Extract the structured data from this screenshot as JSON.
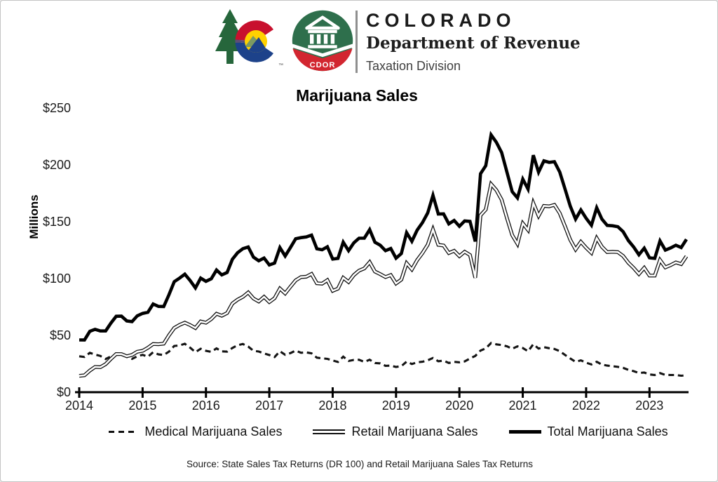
{
  "header": {
    "org_name": "COLORADO",
    "department": "Department of Revenue",
    "division": "Taxation Division",
    "trademark": "™",
    "badge_label": "CDOR",
    "colors": {
      "logo_red": "#C8102E",
      "logo_blue": "#1D428A",
      "logo_yellow": "#FFD100",
      "tree_green": "#26663B",
      "badge_green": "#2E6F4C",
      "badge_red": "#D22630"
    }
  },
  "chart_data": {
    "type": "line",
    "title": "Marijuana Sales",
    "xlabel": "",
    "ylabel": "Millions",
    "source": "Source: State Sales Tax Returns (DR 100) and Retail Marijuana Sales Tax Returns",
    "frequency": "monthly",
    "x_range": [
      "Jan 2014",
      "Aug 2023"
    ],
    "ylim": [
      0,
      250
    ],
    "grid": false,
    "legend_position": "bottom",
    "x_ticks": [
      "2014",
      "2015",
      "2016",
      "2017",
      "2018",
      "2019",
      "2020",
      "2021",
      "2022",
      "2023"
    ],
    "y_ticks": [
      {
        "label": "$0",
        "value": 0
      },
      {
        "label": "$50",
        "value": 50
      },
      {
        "label": "$100",
        "value": 100
      },
      {
        "label": "$150",
        "value": 150
      },
      {
        "label": "$200",
        "value": 200
      },
      {
        "label": "$250",
        "value": 250
      }
    ],
    "series": [
      {
        "name": "Medical Marijuana Sales",
        "style": "dashed",
        "values": [
          31.6,
          31.0,
          34.6,
          33.1,
          31.9,
          29.2,
          31.5,
          33.2,
          33.4,
          31.1,
          29.3,
          31.6,
          32.9,
          31.2,
          35.2,
          33.3,
          32.7,
          35.7,
          40.7,
          41.2,
          42.6,
          39.2,
          35.2,
          38.2,
          36.4,
          35.5,
          38.5,
          35.9,
          35.7,
          38.9,
          41.3,
          42.4,
          40.1,
          36.4,
          35.8,
          34.1,
          32.7,
          30.9,
          36.0,
          32.9,
          34.4,
          36.6,
          34.7,
          35.0,
          34.2,
          30.4,
          29.8,
          29.3,
          27.9,
          26.6,
          31.3,
          27.5,
          28.4,
          28.5,
          26.6,
          28.6,
          25.7,
          25.4,
          23.2,
          23.4,
          22.2,
          22.9,
          26.9,
          24.8,
          26.3,
          26.8,
          28.0,
          30.1,
          27.2,
          27.8,
          25.7,
          26.7,
          26.3,
          27.1,
          29.6,
          31.9,
          36.6,
          38.6,
          43.3,
          42.1,
          41.5,
          40.4,
          38.2,
          40.4,
          38.9,
          36.0,
          42.2,
          38.4,
          39.6,
          38.7,
          38.0,
          36.2,
          32.8,
          29.6,
          26.7,
          28.0,
          26.0,
          24.4,
          26.8,
          24.3,
          23.4,
          22.9,
          22.3,
          21.4,
          19.6,
          18.5,
          16.9,
          17.3,
          15.6,
          15.1,
          16.8,
          15.2,
          15.1,
          15.1,
          14.5,
          14.9
        ]
      },
      {
        "name": "Retail Marijuana Sales",
        "style": "double-line",
        "values": [
          14.4,
          14.9,
          19.0,
          22.2,
          22.0,
          24.7,
          29.3,
          33.6,
          33.5,
          31.6,
          32.8,
          35.6,
          36.4,
          39.1,
          42.4,
          42.2,
          42.7,
          50.1,
          56.5,
          59.2,
          61.2,
          59.1,
          56.5,
          62.2,
          61.1,
          64.3,
          69.0,
          67.3,
          69.6,
          78.0,
          81.4,
          83.9,
          87.7,
          82.4,
          79.8,
          83.9,
          79.3,
          82.7,
          91.2,
          86.9,
          92.8,
          98.4,
          101.3,
          101.6,
          104.0,
          95.8,
          95.5,
          98.6,
          89.2,
          91.1,
          100.7,
          97.0,
          103.0,
          107.0,
          108.9,
          114.4,
          106.2,
          103.9,
          101.3,
          103.0,
          95.7,
          99.1,
          113.5,
          108.0,
          116.2,
          122.4,
          129.7,
          143.1,
          129.6,
          129.1,
          122.4,
          124.4,
          119.7,
          123.6,
          120.7,
          100.7,
          155.6,
          160.7,
          183.1,
          177.8,
          169.4,
          153.2,
          138.2,
          130.5,
          148.6,
          142.7,
          166.3,
          155.2,
          163.9,
          163.5,
          164.8,
          157.5,
          146.0,
          134.1,
          125.6,
          132.3,
          127.1,
          122.5,
          135.5,
          127.9,
          123.3,
          123.5,
          123.3,
          119.9,
          113.8,
          109.3,
          104.0,
          109.4,
          102.6,
          102.6,
          116.3,
          109.8,
          111.8,
          114.2,
          112.7,
          119.6
        ]
      },
      {
        "name": "Total Marijuana Sales",
        "style": "solid-thick",
        "values": [
          46.0,
          45.9,
          53.6,
          55.3,
          53.9,
          53.9,
          60.8,
          66.8,
          66.9,
          62.7,
          62.1,
          67.2,
          69.3,
          70.3,
          77.6,
          75.5,
          75.4,
          85.8,
          97.2,
          100.4,
          103.8,
          98.3,
          91.7,
          100.4,
          97.5,
          99.8,
          107.5,
          103.2,
          105.3,
          116.9,
          122.7,
          126.3,
          127.8,
          118.8,
          115.6,
          118.0,
          112.0,
          113.6,
          127.2,
          119.8,
          127.2,
          135.0,
          136.0,
          136.6,
          138.2,
          126.2,
          125.3,
          127.9,
          117.1,
          117.7,
          132.0,
          124.5,
          131.4,
          135.5,
          135.5,
          143.0,
          131.9,
          129.3,
          124.5,
          126.4,
          117.9,
          122.0,
          140.4,
          132.8,
          142.5,
          149.2,
          157.7,
          173.2,
          156.8,
          156.9,
          148.1,
          151.1,
          146.0,
          150.7,
          150.3,
          132.6,
          192.2,
          199.3,
          226.4,
          219.9,
          210.9,
          193.6,
          176.4,
          170.9,
          187.5,
          178.7,
          208.5,
          193.6,
          203.5,
          202.2,
          202.8,
          193.7,
          178.8,
          163.7,
          152.3,
          160.3,
          153.1,
          146.9,
          162.3,
          152.2,
          146.7,
          146.4,
          145.6,
          141.3,
          133.4,
          127.8,
          120.9,
          126.7,
          118.2,
          117.7,
          133.1,
          125.0,
          126.9,
          129.3,
          127.2,
          134.5
        ]
      }
    ]
  }
}
